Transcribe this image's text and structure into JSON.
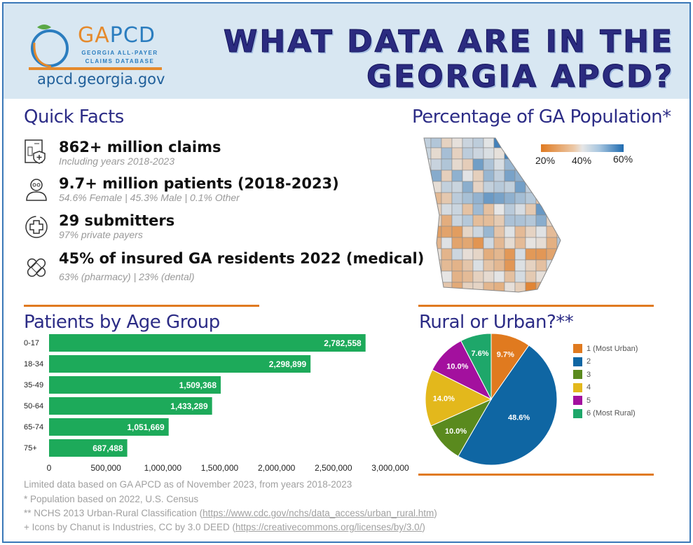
{
  "header": {
    "logo": {
      "brand_prefix": "GA",
      "brand_suffix": "PCD",
      "line1": "GEORGIA ALL-PAYER",
      "line2": "CLAIMS DATABASE",
      "url": "apcd.georgia.gov"
    },
    "title_line1": "WHAT DATA ARE IN THE",
    "title_line2": "GEORGIA APCD?"
  },
  "quick_facts": {
    "heading": "Quick Facts",
    "items": [
      {
        "icon": "claims-document-icon",
        "big": "862+ million claims",
        "small": "Including years 2018-2023"
      },
      {
        "icon": "patient-person-icon",
        "big": "9.7+ million patients (2018-2023)",
        "small": "54.6% Female | 45.3% Male | 0.1% Other"
      },
      {
        "icon": "medical-cross-circle-icon",
        "big": "29 submitters",
        "small": "97% private payers"
      },
      {
        "icon": "bandage-icon",
        "big": "45% of insured GA residents 2022 (medical)",
        "small": "63% (pharmacy) | 23% (dental)"
      }
    ]
  },
  "map": {
    "heading": "Percentage of GA Population*",
    "scale_labels": [
      "20%",
      "40%",
      "60%"
    ],
    "colors": {
      "low": "#e07a20",
      "mid": "#e6e6e6",
      "high": "#1f6bb0"
    }
  },
  "colors": {
    "accent": "#e07a20",
    "heading": "#2c2c86",
    "bar": "#1daa5a",
    "frame": "#3a78b8"
  },
  "chart_data": [
    {
      "type": "bar",
      "orientation": "horizontal",
      "title": "Patients by Age Group",
      "categories": [
        "0-17",
        "18-34",
        "35-49",
        "50-64",
        "65-74",
        "75+"
      ],
      "values": [
        2782558,
        2298899,
        1509368,
        1433289,
        1051669,
        687488
      ],
      "value_labels": [
        "2,782,558",
        "2,298,899",
        "1,509,368",
        "1,433,289",
        "1,051,669",
        "687,488"
      ],
      "xlim": [
        0,
        3000000
      ],
      "x_ticks": [
        "0",
        "500,000",
        "1,000,000",
        "1,500,000",
        "2,000,000",
        "2,500,000",
        "3,000,000"
      ],
      "color": "#1daa5a",
      "grid": false
    },
    {
      "type": "pie",
      "title": "Rural or Urban?**",
      "legend_position": "right",
      "slices": [
        {
          "label": "1 (Most Urban)",
          "value": 9.7,
          "text": "9.7%",
          "color": "#e07a1f"
        },
        {
          "label": "2",
          "value": 48.6,
          "text": "48.6%",
          "color": "#0f66a3"
        },
        {
          "label": "3",
          "value": 10.0,
          "text": "10.0%",
          "color": "#5a8a1e"
        },
        {
          "label": "4",
          "value": 14.0,
          "text": "14.0%",
          "color": "#e3b81c"
        },
        {
          "label": "5",
          "value": 10.0,
          "text": "10.0%",
          "color": "#a3109e"
        },
        {
          "label": "6 (Most Rural)",
          "value": 7.6,
          "text": "7.6%",
          "color": "#1ea76a"
        }
      ]
    }
  ],
  "footer": {
    "line1": "Limited data based on GA APCD as of November 2023, from years 2018-2023",
    "line2": "* Population based on 2022, U.S. Census",
    "line3_prefix": "** NCHS 2013 Urban-Rural Classification (",
    "line3_link": "https://www.cdc.gov/nchs/data_access/urban_rural.htm",
    "line3_suffix": ")",
    "line4_prefix": "+ Icons by Chanut is Industries, CC by 3.0 DEED (",
    "line4_link": "https://creativecommons.org/licenses/by/3.0/",
    "line4_suffix": ")"
  }
}
